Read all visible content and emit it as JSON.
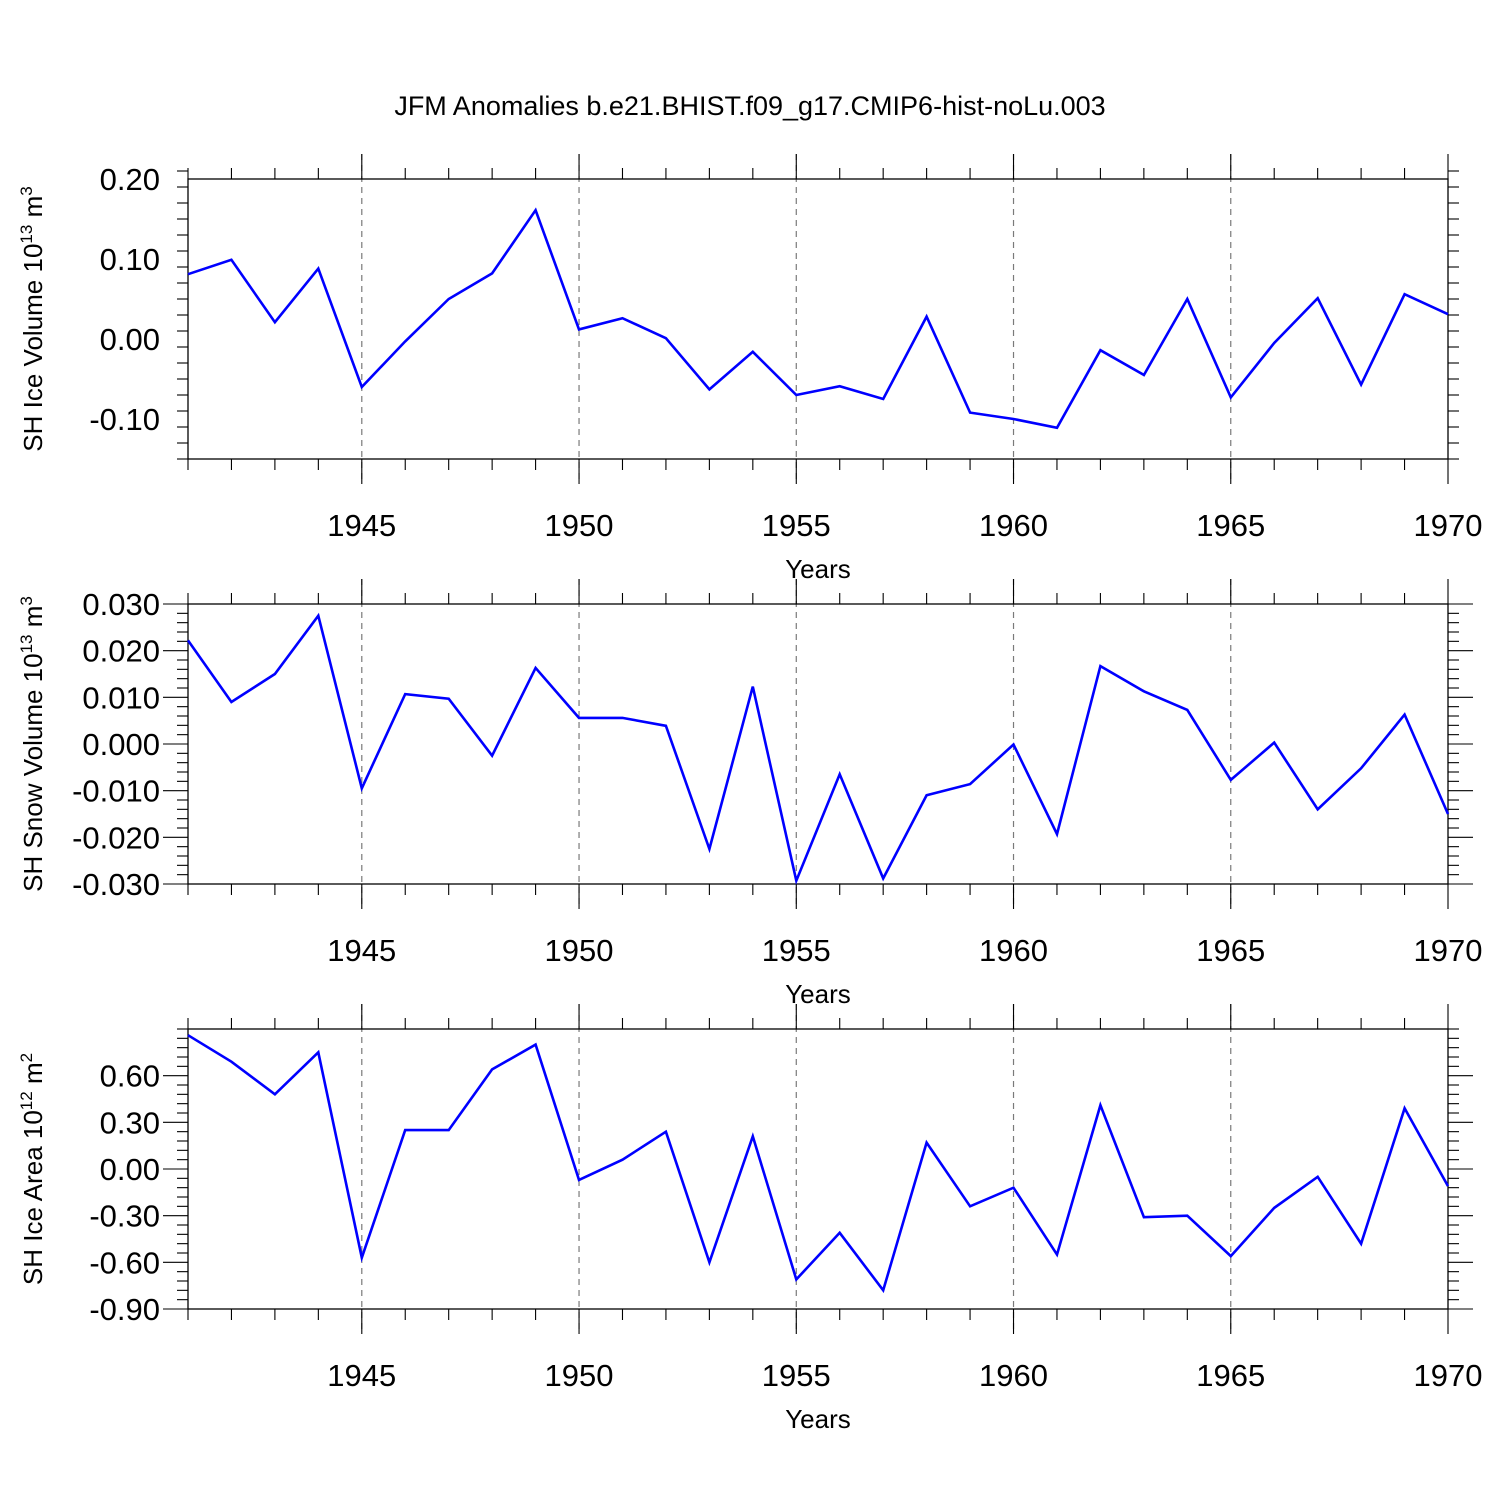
{
  "title": "JFM Anomalies b.e21.BHIST.f09_g17.CMIP6-hist-noLu.003",
  "chart_data": [
    {
      "type": "line",
      "id": "ice-volume",
      "ylabel_main": "SH Ice Volume 10",
      "ylabel_exp": "13",
      "ylabel_unit": " m",
      "ylabel_unit_exp": "3",
      "xlabel": "Years",
      "xlim": [
        1941,
        1970
      ],
      "ylim": [
        -0.15,
        0.2
      ],
      "yticks": [
        -0.1,
        0.0,
        0.1,
        0.2
      ],
      "ytick_labels": [
        "-0.10",
        "0.00",
        "0.10",
        "0.20"
      ],
      "xticks": [
        1945,
        1950,
        1955,
        1960,
        1965,
        1970
      ],
      "xtick_labels": [
        "1945",
        "1950",
        "1955",
        "1960",
        "1965",
        "1970"
      ],
      "grid_x": [
        1945,
        1950,
        1955,
        1960,
        1965
      ],
      "x": [
        1941,
        1942,
        1943,
        1944,
        1945,
        1946,
        1947,
        1948,
        1949,
        1950,
        1951,
        1952,
        1953,
        1954,
        1955,
        1956,
        1957,
        1958,
        1959,
        1960,
        1961,
        1962,
        1963,
        1964,
        1965,
        1966,
        1967,
        1968,
        1969,
        1970
      ],
      "values": [
        0.081,
        0.099,
        0.021,
        0.088,
        -0.06,
        -0.003,
        0.05,
        0.082,
        0.161,
        0.012,
        0.026,
        0.001,
        -0.063,
        -0.016,
        -0.07,
        -0.059,
        -0.075,
        0.028,
        -0.092,
        -0.1,
        -0.111,
        -0.014,
        -0.045,
        0.05,
        -0.073,
        -0.005,
        0.051,
        -0.057,
        0.056,
        0.031
      ],
      "color": "#0000ff"
    },
    {
      "type": "line",
      "id": "snow-volume",
      "ylabel_main": "SH Snow Volume 10",
      "ylabel_exp": "13",
      "ylabel_unit": " m",
      "ylabel_unit_exp": "3",
      "xlabel": "Years",
      "xlim": [
        1941,
        1970
      ],
      "ylim": [
        -0.03,
        0.03
      ],
      "yticks": [
        -0.03,
        -0.02,
        -0.01,
        0.0,
        0.01,
        0.02,
        0.03
      ],
      "ytick_labels": [
        "-0.030",
        "-0.020",
        "-0.010",
        "0.000",
        "0.010",
        "0.020",
        "0.030"
      ],
      "xticks": [
        1945,
        1950,
        1955,
        1960,
        1965,
        1970
      ],
      "xtick_labels": [
        "1945",
        "1950",
        "1955",
        "1960",
        "1965",
        "1970"
      ],
      "grid_x": [
        1945,
        1950,
        1955,
        1960,
        1965
      ],
      "x": [
        1941,
        1942,
        1943,
        1944,
        1945,
        1946,
        1947,
        1948,
        1949,
        1950,
        1951,
        1952,
        1953,
        1954,
        1955,
        1956,
        1957,
        1958,
        1959,
        1960,
        1961,
        1962,
        1963,
        1964,
        1965,
        1966,
        1967,
        1968,
        1969,
        1970
      ],
      "values": [
        0.0222,
        0.009,
        0.015,
        0.0275,
        -0.0095,
        0.0107,
        0.0097,
        -0.0025,
        0.0163,
        0.0056,
        0.0056,
        0.0039,
        -0.0225,
        0.0123,
        -0.0293,
        -0.0065,
        -0.0288,
        -0.011,
        -0.0086,
        -0.0001,
        -0.0193,
        0.0167,
        0.0113,
        0.0073,
        -0.0077,
        0.0003,
        -0.014,
        -0.0052,
        0.0063,
        -0.015
      ],
      "color": "#0000ff"
    },
    {
      "type": "line",
      "id": "ice-area",
      "ylabel_main": "SH Ice Area 10",
      "ylabel_exp": "12",
      "ylabel_unit": " m",
      "ylabel_unit_exp": "2",
      "xlabel": "Years",
      "xlim": [
        1941,
        1970
      ],
      "ylim": [
        -0.9,
        0.9
      ],
      "yticks": [
        -0.9,
        -0.6,
        -0.3,
        0.0,
        0.3,
        0.6
      ],
      "ytick_labels": [
        "-0.90",
        "-0.60",
        "-0.30",
        "0.00",
        "0.30",
        "0.60"
      ],
      "xticks": [
        1945,
        1950,
        1955,
        1960,
        1965,
        1970
      ],
      "xtick_labels": [
        "1945",
        "1950",
        "1955",
        "1960",
        "1965",
        "1970"
      ],
      "grid_x": [
        1945,
        1950,
        1955,
        1960,
        1965
      ],
      "x": [
        1941,
        1942,
        1943,
        1944,
        1945,
        1946,
        1947,
        1948,
        1949,
        1950,
        1951,
        1952,
        1953,
        1954,
        1955,
        1956,
        1957,
        1958,
        1959,
        1960,
        1961,
        1962,
        1963,
        1964,
        1965,
        1966,
        1967,
        1968,
        1969,
        1970
      ],
      "values": [
        0.86,
        0.69,
        0.48,
        0.75,
        -0.57,
        0.25,
        0.25,
        0.64,
        0.8,
        -0.07,
        0.06,
        0.24,
        -0.6,
        0.21,
        -0.71,
        -0.41,
        -0.78,
        0.17,
        -0.24,
        -0.12,
        -0.55,
        0.41,
        -0.31,
        -0.3,
        -0.56,
        -0.25,
        -0.05,
        -0.48,
        0.39,
        -0.11
      ],
      "color": "#0000ff"
    }
  ]
}
